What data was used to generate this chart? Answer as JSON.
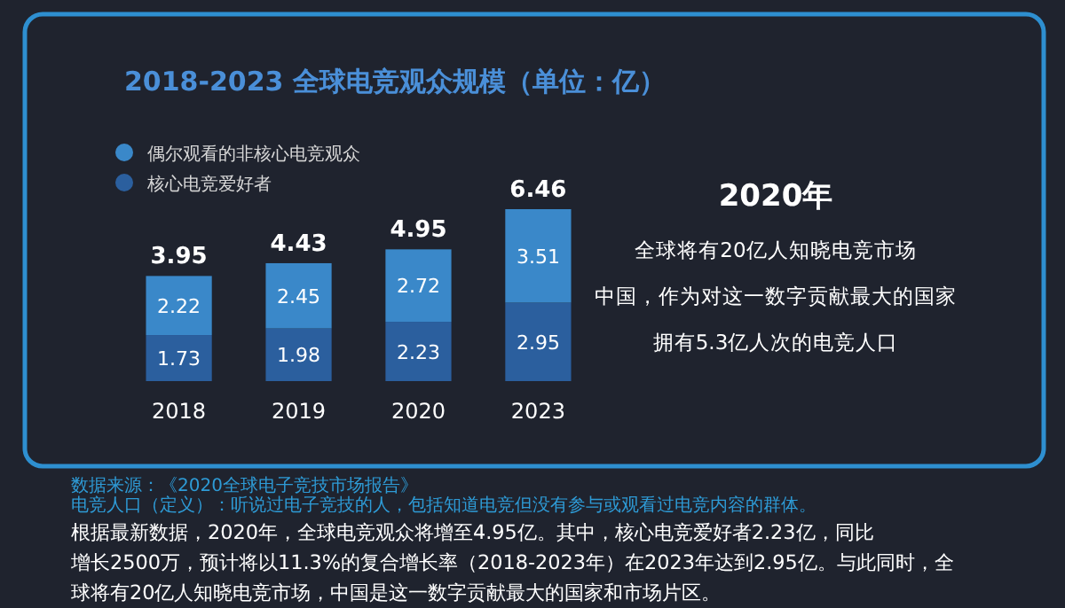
{
  "chart_data": {
    "type": "bar",
    "title": "2018-2023 全球电竞观众规模（单位：亿）",
    "categories": [
      "2018",
      "2019",
      "2020",
      "2023"
    ],
    "stacked": true,
    "data_labels": true,
    "legend": "top left",
    "series": [
      {
        "name": "核心电竞爱好者",
        "color": "#2b5f9e",
        "values": [
          1.73,
          1.98,
          2.23,
          2.95
        ]
      },
      {
        "name": "偶尔观看的非核心电竞观众",
        "color": "#3a88c9",
        "values": [
          2.22,
          2.45,
          2.72,
          3.51
        ]
      }
    ],
    "totals": [
      "3.95",
      "4.43",
      "4.95",
      "6.46"
    ],
    "annotations": [
      "2020年",
      "全球将有20亿人知晓电竞市场",
      "中国，作为对这一数字贡献最大的国家",
      "拥有5.3亿人次的电竞人口",
      "数据来源：《2020全球电子竞技市场报告》",
      "电竞人口（定义）：听说过电子竞技的人，包括知道电竞但没有参与或观看过电竞内容的群体。",
      "根据最新数据，2020年，全球电竞观众将增至4.95亿。其中，核心电竞爱好者2.23亿，同比",
      "增长2500万，预计将以11.3%的复合增长率（2018-2023年）在2023年达到2.95亿。与此同时，全",
      "球将有20亿人知晓电竞市场，中国是这一数字贡献最大的国家和市场片区。"
    ]
  }
}
